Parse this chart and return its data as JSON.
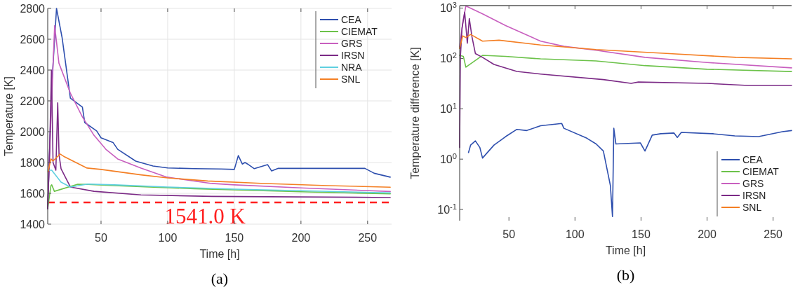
{
  "chart_data": [
    {
      "type": "line",
      "xlabel": "Time [h]",
      "ylabel": "Temperature [K]",
      "xlim": [
        10,
        268
      ],
      "ylim": [
        1400,
        2800
      ],
      "xticks": [
        50,
        100,
        150,
        200,
        250
      ],
      "yticks": [
        1400,
        1600,
        1800,
        2000,
        2200,
        2400,
        2600,
        2800
      ],
      "grid": true,
      "legend": "top right",
      "annotations": [
        "(a)"
      ],
      "ref_lines": [
        {
          "axis": "y",
          "value": 1541,
          "label": "1541.0 K",
          "color": "#ff2020",
          "line_style": "dashed"
        }
      ],
      "series": [
        {
          "name": "CEA",
          "color": "#2e4fae",
          "x": [
            10,
            13,
            16.6,
            20.8,
            27,
            36,
            37.8,
            46.7,
            50,
            59,
            62.5,
            76,
            89,
            100,
            120,
            140,
            150,
            153,
            156,
            158,
            160,
            165,
            175,
            178,
            183,
            248,
            255,
            267
          ],
          "values": [
            1500,
            2300,
            2800,
            2610,
            2218,
            2160,
            2059,
            2005,
            1960,
            1930,
            1886,
            1809,
            1777,
            1765,
            1760,
            1758,
            1755,
            1845,
            1790,
            1800,
            1790,
            1760,
            1786,
            1745,
            1762,
            1762,
            1730,
            1705
          ]
        },
        {
          "name": "CIEMAT",
          "color": "#6cc24a",
          "x": [
            10,
            12.4,
            13,
            15,
            32.5,
            40,
            60,
            120,
            200,
            267
          ],
          "values": [
            1500,
            1650,
            1655,
            1613,
            1659,
            1658,
            1650,
            1630,
            1610,
            1597
          ]
        },
        {
          "name": "GRS",
          "color": "#c85fbf",
          "x": [
            10,
            12,
            15.2,
            18.4,
            27,
            36,
            44.7,
            53.6,
            62.5,
            80,
            99.5,
            133,
            150,
            200,
            267
          ],
          "values": [
            1500,
            2000,
            2688,
            2445,
            2250,
            2096,
            1977,
            1886,
            1823,
            1764,
            1705,
            1664,
            1655,
            1635,
            1612
          ]
        },
        {
          "name": "IRSN",
          "color": "#7b2a86",
          "x": [
            10,
            11.5,
            12.8,
            14,
            16.1,
            17.5,
            18.5,
            20,
            27,
            44.7,
            80,
            133,
            267
          ],
          "values": [
            1500,
            1900,
            2400,
            1800,
            1750,
            2187,
            1850,
            1760,
            1641,
            1613,
            1590,
            1580,
            1573
          ]
        },
        {
          "name": "NRA",
          "color": "#5fd0e0",
          "x": [
            10.3,
            13,
            20,
            27,
            40,
            60,
            99.6,
            150,
            267
          ],
          "values": [
            1750,
            1750,
            1673,
            1641,
            1660,
            1655,
            1641,
            1627,
            1603
          ]
        },
        {
          "name": "SNL",
          "color": "#f47f24",
          "x": [
            10.3,
            12.4,
            14,
            19.3,
            22,
            39.5,
            50,
            80,
            100,
            130,
            170,
            220,
            267
          ],
          "values": [
            1740,
            1823,
            1810,
            1855,
            1840,
            1764,
            1755,
            1720,
            1700,
            1680,
            1665,
            1650,
            1640
          ]
        }
      ]
    },
    {
      "type": "line",
      "xlabel": "Time [h]",
      "ylabel": "Temperature difference [K]",
      "log": true,
      "xlim": [
        12.7,
        264
      ],
      "ylim": [
        0.06,
        1120
      ],
      "xticks": [
        50,
        100,
        150,
        200,
        250
      ],
      "yticks": [
        {
          "value": 0.1,
          "label": "10$^{-1}$"
        },
        {
          "value": 1,
          "label": "10$^{0}$"
        },
        {
          "value": 10,
          "label": "10$^{1}$"
        },
        {
          "value": 100,
          "label": "10$^{2}$"
        },
        {
          "value": 1000,
          "label": "10$^{3}$"
        }
      ],
      "grid": false,
      "legend": "bottom right",
      "annotations": [
        "(b)"
      ],
      "series": [
        {
          "name": "CEA",
          "color": "#2e4fae",
          "x": [
            19.4,
            21,
            24.6,
            28,
            30,
            38.7,
            47.5,
            56,
            63.5,
            74,
            90,
            91.6,
            109,
            116,
            121.5,
            126.8,
            128.4,
            129.4,
            131,
            149.5,
            153,
            158.5,
            165,
            175,
            177.5,
            180.5,
            204,
            221,
            239,
            257,
            264
          ],
          "values": [
            1.35,
            1.9,
            2.3,
            1.7,
            1.05,
            1.9,
            2.8,
            3.9,
            3.7,
            4.6,
            5.1,
            4.1,
            2.6,
            2,
            1.45,
            0.3,
            0.072,
            4.1,
            2,
            2.1,
            1.45,
            3,
            3.2,
            3.3,
            2.7,
            3.4,
            3.2,
            2.9,
            2.8,
            3.5,
            3.7
          ]
        },
        {
          "name": "CIEMAT",
          "color": "#6cc24a",
          "x": [
            12.7,
            15.5,
            17.4,
            30,
            47.5,
            74,
            116,
            153,
            200,
            264
          ],
          "values": [
            115,
            110,
            67,
            115,
            110,
            98,
            89,
            72,
            61,
            55
          ]
        },
        {
          "name": "GRS",
          "color": "#c85fbf",
          "x": [
            12.7,
            15,
            17.4,
            30,
            47.5,
            74,
            91.6,
            116,
            153,
            200,
            264
          ],
          "values": [
            170,
            500,
            1100,
            770,
            450,
            220,
            174,
            145,
            105,
            83,
            65
          ]
        },
        {
          "name": "IRSN",
          "color": "#7b2a86",
          "x": [
            12.7,
            13.2,
            14.5,
            16.5,
            18.5,
            20,
            22,
            24.6,
            30,
            38.7,
            56,
            74,
            121.5,
            142.5,
            148,
            200,
            231,
            264
          ],
          "values": [
            1.7,
            100,
            400,
            830,
            200,
            620,
            270,
            125,
            105,
            76,
            55,
            49,
            38,
            32,
            34,
            32,
            29,
            29
          ]
        },
        {
          "name": "SNL",
          "color": "#f47f24",
          "x": [
            12.7,
            15,
            17.4,
            21,
            30,
            42.5,
            74,
            116,
            169,
            222,
            264
          ],
          "values": [
            158,
            280,
            260,
            300,
            220,
            230,
            185,
            150,
            126,
            105,
            98
          ]
        }
      ]
    }
  ]
}
